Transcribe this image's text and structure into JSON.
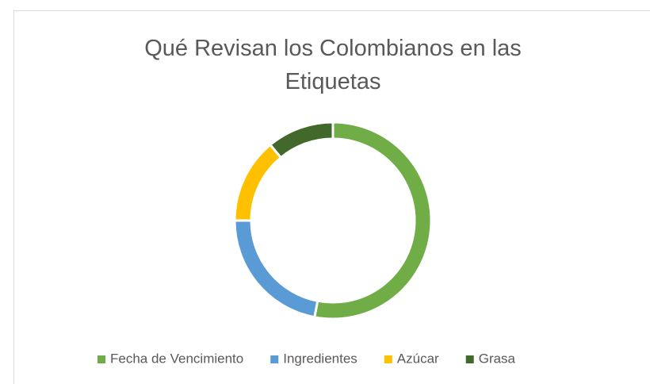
{
  "chart_data": {
    "type": "donut",
    "title": "Qué Revisan los Colombianos en las Etiquetas",
    "categories": [
      "Fecha de Vencimiento",
      "Ingredientes",
      "Azúcar",
      "Grasa"
    ],
    "values": [
      53,
      22,
      14,
      11
    ],
    "colors": [
      "#70ad47",
      "#5b9bd5",
      "#ffc000",
      "#43682b"
    ],
    "legend": "bottom"
  }
}
